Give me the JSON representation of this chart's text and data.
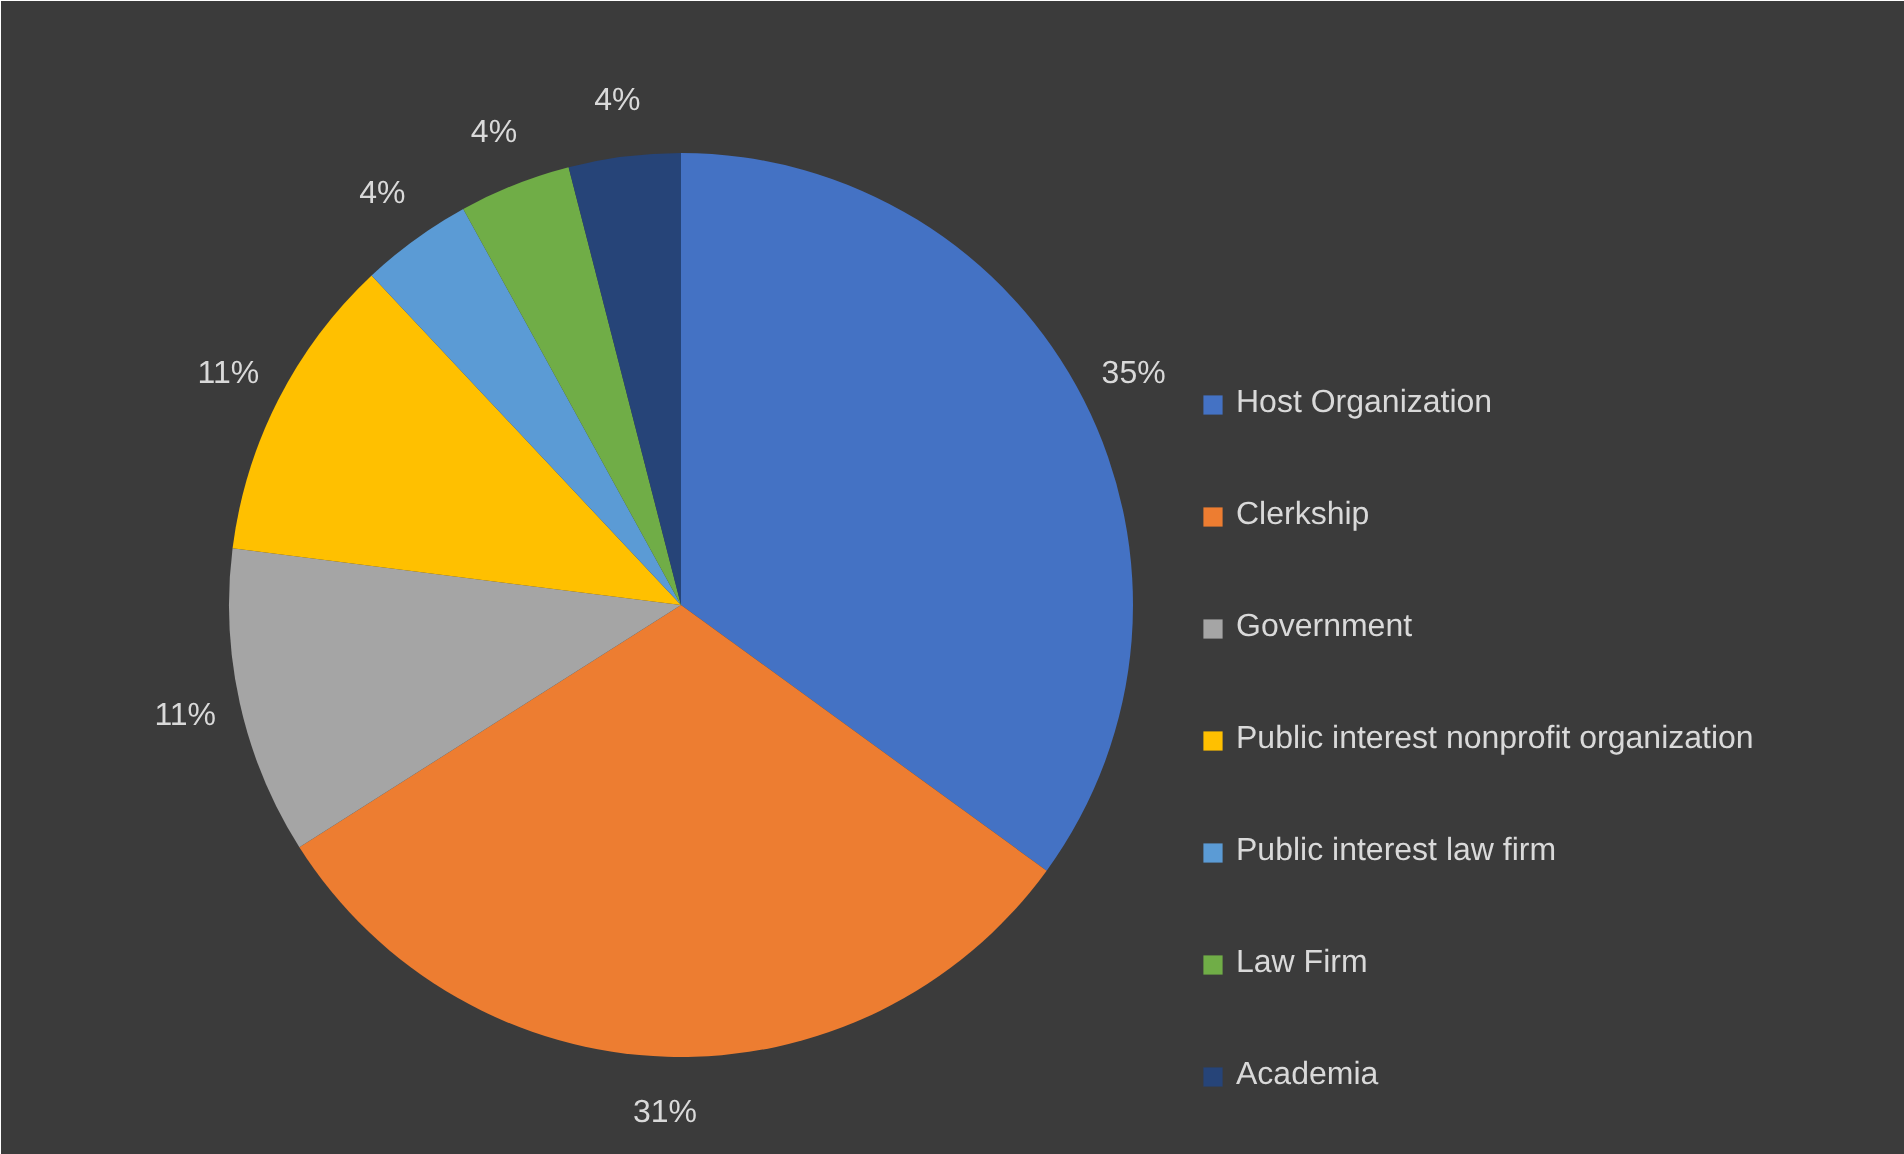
{
  "chart_data": {
    "type": "pie",
    "categories": [
      "Host Organization",
      "Clerkship",
      "Government",
      "Public interest nonprofit organization",
      "Public interest law firm",
      "Law Firm",
      "Academia"
    ],
    "values": [
      35,
      31,
      11,
      11,
      4,
      4,
      4
    ],
    "colors": [
      "#4472c4",
      "#ed7d31",
      "#a5a5a5",
      "#ffc000",
      "#5b9bd5",
      "#70ad47",
      "#264478"
    ],
    "value_labels": [
      "35%",
      "31%",
      "11%",
      "11%",
      "4%",
      "4%",
      "4%"
    ],
    "legend": "right"
  }
}
